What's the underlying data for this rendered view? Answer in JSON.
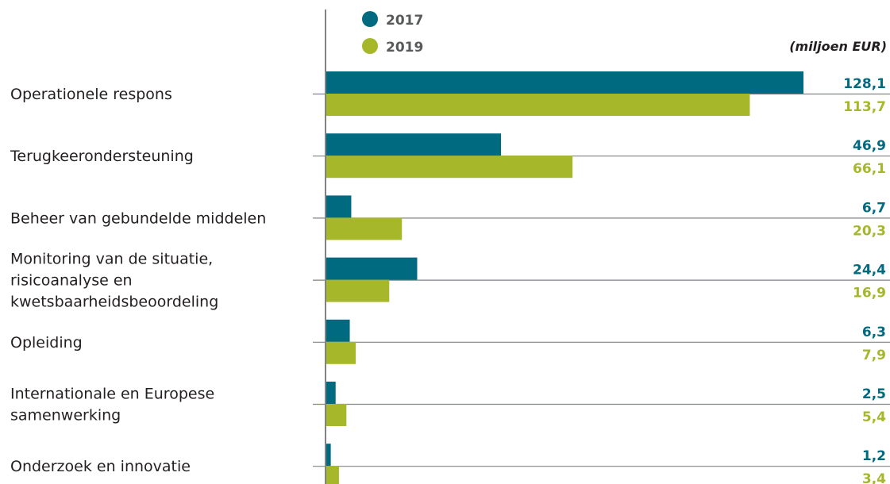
{
  "chart_data": {
    "type": "bar",
    "orientation": "horizontal",
    "unit": "(miljoen EUR)",
    "categories": [
      [
        "Operationele respons"
      ],
      [
        "Terugkeerondersteuning"
      ],
      [
        "Beheer van gebundelde middelen"
      ],
      [
        "Monitoring van de situatie,",
        "risicoanalyse en",
        "kwetsbaarheidsbeoordeling"
      ],
      [
        "Opleiding"
      ],
      [
        "Internationale en Europese",
        "samenwerking"
      ],
      [
        "Onderzoek en innovatie"
      ]
    ],
    "series": [
      {
        "name": "2017",
        "color": "#006a80",
        "values": [
          128.1,
          46.9,
          6.7,
          24.4,
          6.3,
          2.5,
          1.2
        ],
        "labels": [
          "128,1",
          "46,9",
          "6,7",
          "24,4",
          "6,3",
          "2,5",
          "1,2"
        ]
      },
      {
        "name": "2019",
        "color": "#a6b82a",
        "values": [
          113.7,
          66.1,
          20.3,
          16.9,
          7.9,
          5.4,
          3.4
        ],
        "labels": [
          "113,7",
          "66,1",
          "20,3",
          "16,9",
          "7,9",
          "5,4",
          "3,4"
        ]
      }
    ],
    "xlim": [
      0,
      128.1
    ],
    "legend_position": "top-left of plot",
    "grid": false
  }
}
